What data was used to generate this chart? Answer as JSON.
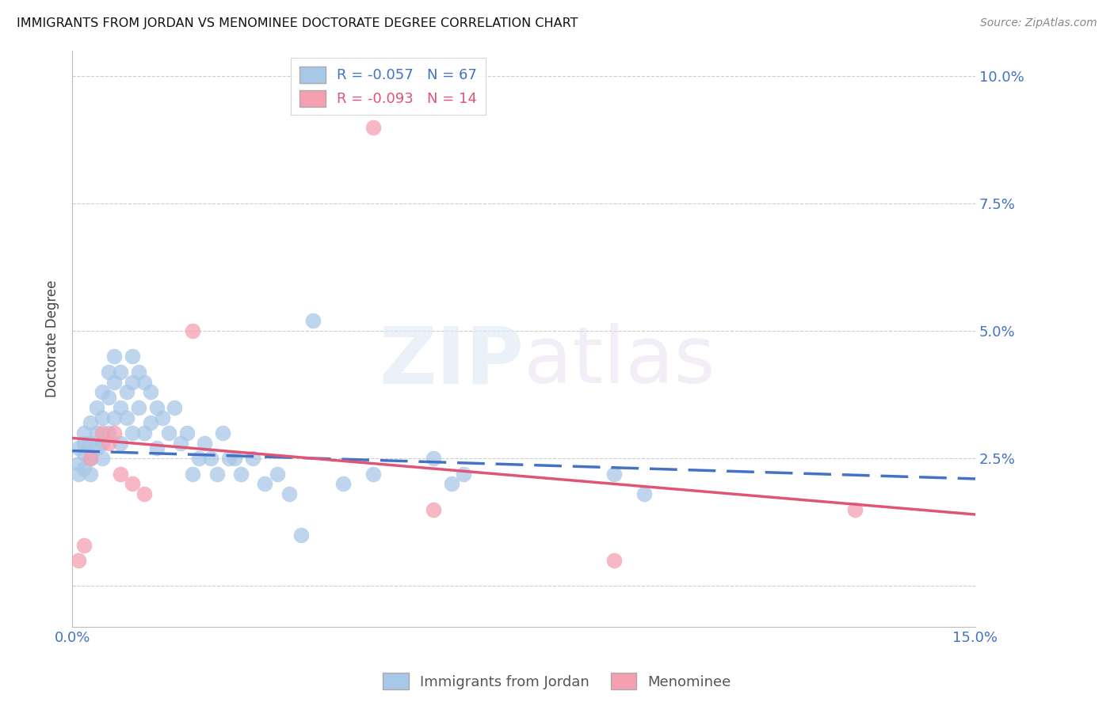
{
  "title": "IMMIGRANTS FROM JORDAN VS MENOMINEE DOCTORATE DEGREE CORRELATION CHART",
  "source": "Source: ZipAtlas.com",
  "ylabel": "Doctorate Degree",
  "xlim": [
    0.0,
    0.15
  ],
  "ylim": [
    -0.008,
    0.105
  ],
  "yticks": [
    0.0,
    0.025,
    0.05,
    0.075,
    0.1
  ],
  "ytick_labels": [
    "",
    "2.5%",
    "5.0%",
    "7.5%",
    "10.0%"
  ],
  "xticks": [
    0.0,
    0.03,
    0.06,
    0.09,
    0.12,
    0.15
  ],
  "xtick_labels": [
    "0.0%",
    "",
    "",
    "",
    "",
    "15.0%"
  ],
  "blue_r": -0.057,
  "blue_n": 67,
  "pink_r": -0.093,
  "pink_n": 14,
  "blue_color": "#a8c8e8",
  "pink_color": "#f4a0b0",
  "trend_blue_color": "#4472c4",
  "trend_pink_color": "#e05575",
  "watermark_zip": "ZIP",
  "watermark_atlas": "atlas",
  "legend_label_blue": "Immigrants from Jordan",
  "legend_label_pink": "Menominee",
  "blue_points_x": [
    0.001,
    0.001,
    0.001,
    0.002,
    0.002,
    0.002,
    0.002,
    0.003,
    0.003,
    0.003,
    0.003,
    0.004,
    0.004,
    0.004,
    0.005,
    0.005,
    0.005,
    0.005,
    0.006,
    0.006,
    0.006,
    0.007,
    0.007,
    0.007,
    0.008,
    0.008,
    0.008,
    0.009,
    0.009,
    0.01,
    0.01,
    0.01,
    0.011,
    0.011,
    0.012,
    0.012,
    0.013,
    0.013,
    0.014,
    0.014,
    0.015,
    0.016,
    0.017,
    0.018,
    0.019,
    0.02,
    0.021,
    0.022,
    0.023,
    0.024,
    0.025,
    0.026,
    0.027,
    0.028,
    0.03,
    0.032,
    0.034,
    0.036,
    0.038,
    0.04,
    0.045,
    0.05,
    0.06,
    0.063,
    0.065,
    0.09,
    0.095
  ],
  "blue_points_y": [
    0.024,
    0.027,
    0.022,
    0.028,
    0.026,
    0.023,
    0.03,
    0.032,
    0.028,
    0.025,
    0.022,
    0.035,
    0.03,
    0.027,
    0.038,
    0.033,
    0.028,
    0.025,
    0.042,
    0.037,
    0.03,
    0.045,
    0.04,
    0.033,
    0.042,
    0.035,
    0.028,
    0.038,
    0.033,
    0.045,
    0.04,
    0.03,
    0.042,
    0.035,
    0.04,
    0.03,
    0.038,
    0.032,
    0.035,
    0.027,
    0.033,
    0.03,
    0.035,
    0.028,
    0.03,
    0.022,
    0.025,
    0.028,
    0.025,
    0.022,
    0.03,
    0.025,
    0.025,
    0.022,
    0.025,
    0.02,
    0.022,
    0.018,
    0.01,
    0.052,
    0.02,
    0.022,
    0.025,
    0.02,
    0.022,
    0.022,
    0.018
  ],
  "pink_points_x": [
    0.001,
    0.002,
    0.003,
    0.005,
    0.006,
    0.007,
    0.008,
    0.01,
    0.012,
    0.02,
    0.05,
    0.06,
    0.09,
    0.13
  ],
  "pink_points_y": [
    0.005,
    0.008,
    0.025,
    0.03,
    0.028,
    0.03,
    0.022,
    0.02,
    0.018,
    0.05,
    0.09,
    0.015,
    0.005,
    0.015
  ],
  "blue_trend_x0": 0.0,
  "blue_trend_y0": 0.0265,
  "blue_trend_x1": 0.15,
  "blue_trend_y1": 0.021,
  "pink_trend_x0": 0.0,
  "pink_trend_y0": 0.029,
  "pink_trend_x1": 0.15,
  "pink_trend_y1": 0.014
}
